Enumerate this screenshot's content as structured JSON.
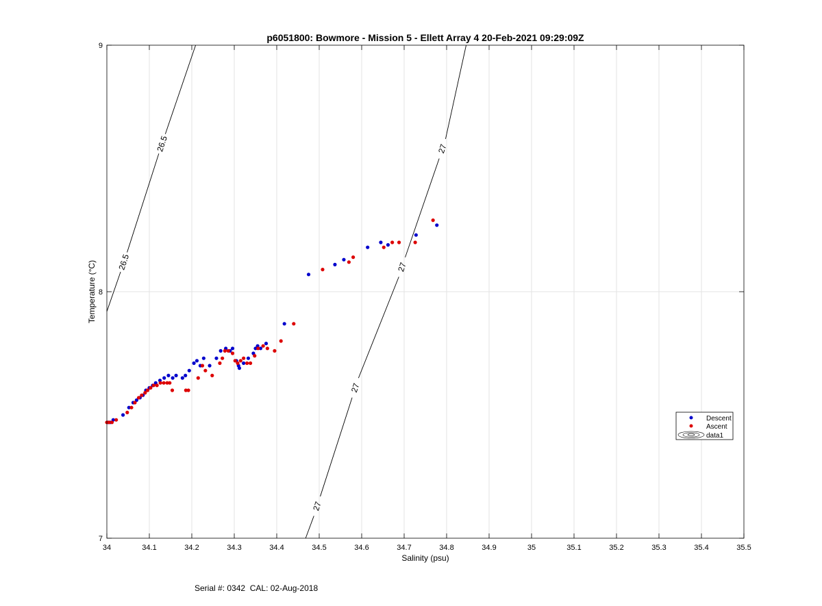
{
  "footer": {
    "text": "Serial #: 0342  CAL: 02-Aug-2018"
  },
  "chart_data": {
    "type": "scatter",
    "title": "p6051800: Bowmore - Mission 5 - Ellett Array 4 20-Feb-2021 09:29:09Z",
    "xlabel": "Salinity (psu)",
    "ylabel": "Temperature (°C)",
    "xlim": [
      34,
      35.5
    ],
    "ylim": [
      7,
      9
    ],
    "xticks": [
      34,
      34.1,
      34.2,
      34.3,
      34.4,
      34.5,
      34.6,
      34.7,
      34.8,
      34.9,
      35,
      35.1,
      35.2,
      35.3,
      35.4,
      35.5
    ],
    "xtick_labels": [
      "34",
      "34.1",
      "34.2",
      "34.3",
      "34.4",
      "34.5",
      "34.6",
      "34.7",
      "34.8",
      "34.9",
      "35",
      "35.1",
      "35.2",
      "35.3",
      "35.4",
      "35.5"
    ],
    "yticks": [
      7,
      8,
      9
    ],
    "ytick_labels": [
      "7",
      "8",
      "9"
    ],
    "grid": true,
    "legend_position": "right",
    "legend": [
      "Descent",
      "Ascent",
      "data1"
    ],
    "contours": [
      {
        "level": "26.5",
        "points": [
          [
            34.0,
            7.92
          ],
          [
            34.209,
            9.0
          ]
        ],
        "label_positions": [
          [
            34.04,
            8.12
          ],
          [
            34.13,
            8.6
          ]
        ]
      },
      {
        "level": "27",
        "points": [
          [
            34.468,
            7.0
          ],
          [
            34.846,
            9.0
          ]
        ],
        "label_positions": [
          [
            34.495,
            7.13
          ],
          [
            34.585,
            7.61
          ],
          [
            34.695,
            8.1
          ],
          [
            34.79,
            8.58
          ]
        ]
      }
    ],
    "series": [
      {
        "name": "Descent",
        "color": "#0000cc",
        "points": [
          [
            34.003,
            7.47
          ],
          [
            34.008,
            7.47
          ],
          [
            34.015,
            7.48
          ],
          [
            34.038,
            7.5
          ],
          [
            34.052,
            7.53
          ],
          [
            34.062,
            7.55
          ],
          [
            34.07,
            7.56
          ],
          [
            34.078,
            7.57
          ],
          [
            34.085,
            7.58
          ],
          [
            34.092,
            7.6
          ],
          [
            34.1,
            7.61
          ],
          [
            34.108,
            7.62
          ],
          [
            34.115,
            7.63
          ],
          [
            34.125,
            7.64
          ],
          [
            34.135,
            7.65
          ],
          [
            34.145,
            7.66
          ],
          [
            34.155,
            7.65
          ],
          [
            34.163,
            7.66
          ],
          [
            34.178,
            7.65
          ],
          [
            34.185,
            7.66
          ],
          [
            34.194,
            7.68
          ],
          [
            34.205,
            7.71
          ],
          [
            34.212,
            7.72
          ],
          [
            34.22,
            7.7
          ],
          [
            34.228,
            7.73
          ],
          [
            34.242,
            7.7
          ],
          [
            34.258,
            7.73
          ],
          [
            34.268,
            7.76
          ],
          [
            34.28,
            7.77
          ],
          [
            34.29,
            7.76
          ],
          [
            34.296,
            7.77
          ],
          [
            34.305,
            7.72
          ],
          [
            34.31,
            7.7
          ],
          [
            34.312,
            7.69
          ],
          [
            34.322,
            7.71
          ],
          [
            34.333,
            7.73
          ],
          [
            34.345,
            7.75
          ],
          [
            34.35,
            7.77
          ],
          [
            34.355,
            7.78
          ],
          [
            34.362,
            7.77
          ],
          [
            34.375,
            7.79
          ],
          [
            34.418,
            7.87
          ],
          [
            34.475,
            8.07
          ],
          [
            34.537,
            8.11
          ],
          [
            34.558,
            8.13
          ],
          [
            34.614,
            8.18
          ],
          [
            34.645,
            8.2
          ],
          [
            34.662,
            8.19
          ],
          [
            34.728,
            8.23
          ],
          [
            34.777,
            8.27
          ]
        ]
      },
      {
        "name": "Ascent",
        "color": "#dd0000",
        "points": [
          [
            34.0,
            7.47
          ],
          [
            34.005,
            7.47
          ],
          [
            34.012,
            7.47
          ],
          [
            34.022,
            7.48
          ],
          [
            34.048,
            7.51
          ],
          [
            34.058,
            7.53
          ],
          [
            34.066,
            7.55
          ],
          [
            34.075,
            7.57
          ],
          [
            34.082,
            7.58
          ],
          [
            34.09,
            7.59
          ],
          [
            34.096,
            7.6
          ],
          [
            34.103,
            7.61
          ],
          [
            34.11,
            7.62
          ],
          [
            34.118,
            7.62
          ],
          [
            34.126,
            7.63
          ],
          [
            34.134,
            7.63
          ],
          [
            34.142,
            7.63
          ],
          [
            34.148,
            7.63
          ],
          [
            34.154,
            7.6
          ],
          [
            34.186,
            7.6
          ],
          [
            34.192,
            7.6
          ],
          [
            34.215,
            7.65
          ],
          [
            34.225,
            7.7
          ],
          [
            34.232,
            7.68
          ],
          [
            34.248,
            7.66
          ],
          [
            34.266,
            7.71
          ],
          [
            34.272,
            7.73
          ],
          [
            34.278,
            7.76
          ],
          [
            34.286,
            7.76
          ],
          [
            34.296,
            7.75
          ],
          [
            34.302,
            7.72
          ],
          [
            34.308,
            7.71
          ],
          [
            34.315,
            7.72
          ],
          [
            34.322,
            7.73
          ],
          [
            34.33,
            7.71
          ],
          [
            34.338,
            7.71
          ],
          [
            34.348,
            7.74
          ],
          [
            34.356,
            7.77
          ],
          [
            34.368,
            7.78
          ],
          [
            34.378,
            7.77
          ],
          [
            34.395,
            7.76
          ],
          [
            34.41,
            7.8
          ],
          [
            34.44,
            7.87
          ],
          [
            34.508,
            8.09
          ],
          [
            34.57,
            8.12
          ],
          [
            34.58,
            8.14
          ],
          [
            34.652,
            8.18
          ],
          [
            34.672,
            8.2
          ],
          [
            34.688,
            8.2
          ],
          [
            34.726,
            8.2
          ],
          [
            34.768,
            8.29
          ]
        ]
      }
    ]
  }
}
